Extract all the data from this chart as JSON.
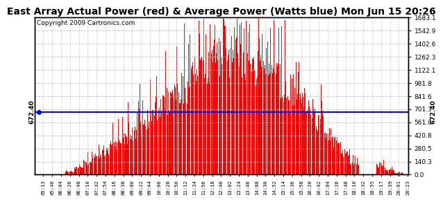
{
  "title": "East Array Actual Power (red) & Average Power (Watts blue) Mon Jun 15 20:26",
  "copyright": "Copyright 2009 Cartronics.com",
  "average_power": 672.4,
  "ymax": 1683.1,
  "ymin": 0.0,
  "yticks_right": [
    0.0,
    140.3,
    280.5,
    420.8,
    561.0,
    701.3,
    841.6,
    981.8,
    1122.1,
    1262.3,
    1402.6,
    1542.9,
    1683.1
  ],
  "avg_label": "672.40",
  "background_color": "#ffffff",
  "fill_color": "#ff0000",
  "line_color": "#0000ff",
  "grid_color": "#b0b0b0",
  "title_fontsize": 10,
  "copyright_fontsize": 6.5,
  "tick_fontsize": 7,
  "time_labels": [
    "05:13",
    "05:40",
    "06:04",
    "06:26",
    "06:48",
    "07:10",
    "07:32",
    "07:54",
    "08:16",
    "08:38",
    "09:00",
    "09:22",
    "09:44",
    "10:06",
    "10:28",
    "10:50",
    "11:12",
    "11:34",
    "11:56",
    "12:18",
    "12:40",
    "13:02",
    "13:24",
    "13:46",
    "14:08",
    "14:30",
    "14:52",
    "15:14",
    "15:36",
    "15:58",
    "16:20",
    "16:42",
    "17:04",
    "17:26",
    "17:48",
    "18:10",
    "18:32",
    "18:55",
    "19:17",
    "19:39",
    "20:01",
    "20:23"
  ]
}
